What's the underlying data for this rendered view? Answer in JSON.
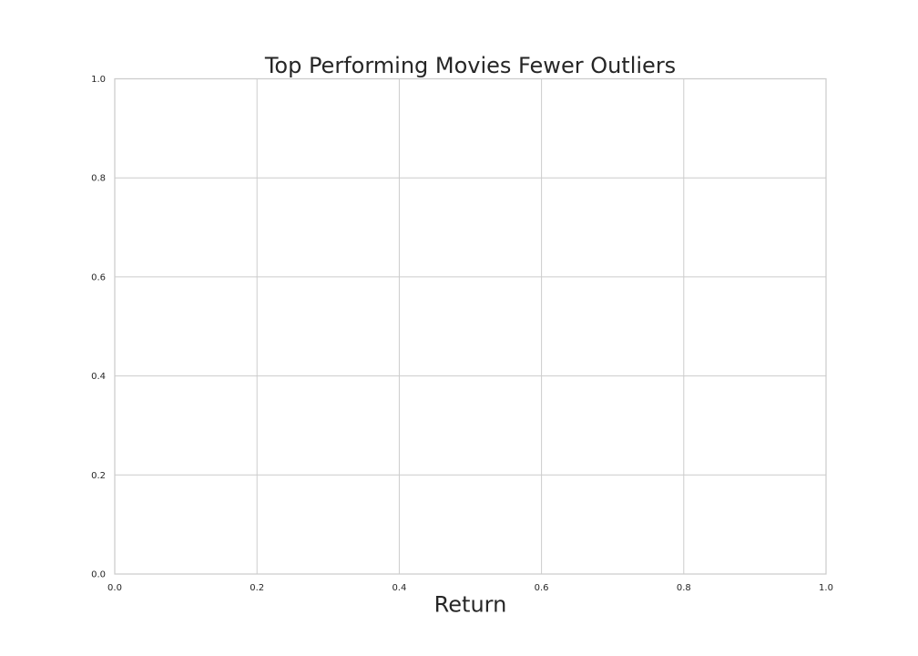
{
  "chart_data": {
    "type": "scatter",
    "title": "Top Performing Movies Fewer Outliers",
    "xlabel": "Return",
    "ylabel": "",
    "xlim": [
      0.0,
      1.0
    ],
    "ylim": [
      0.0,
      1.0
    ],
    "x_ticks": [
      "0.0",
      "0.2",
      "0.4",
      "0.6",
      "0.8",
      "1.0"
    ],
    "y_ticks": [
      "0.0",
      "0.2",
      "0.4",
      "0.6",
      "0.8",
      "1.0"
    ],
    "grid": true,
    "series": []
  }
}
